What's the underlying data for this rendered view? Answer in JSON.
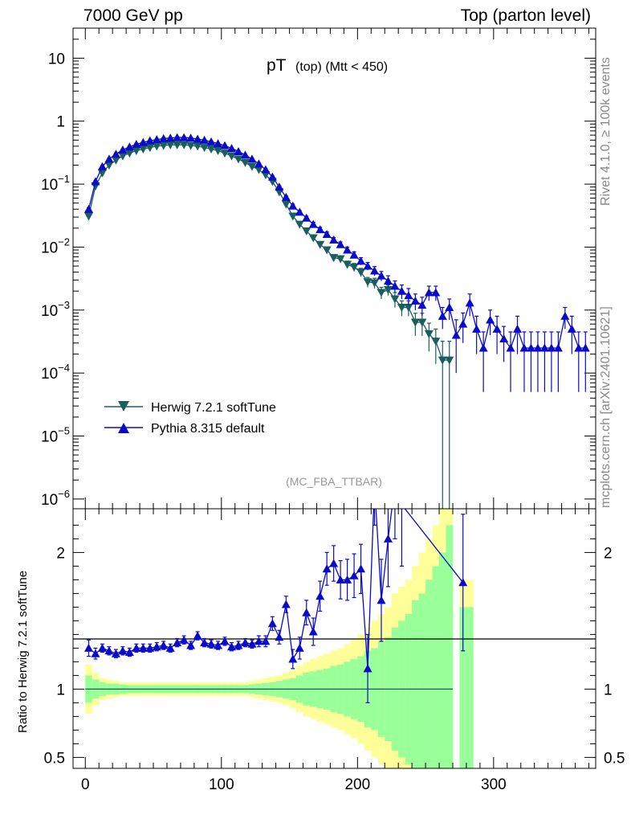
{
  "header": {
    "left": "7000 GeV pp",
    "right": "Top (parton level)"
  },
  "side_labels": {
    "rivet": "Rivet 4.1.0, ≥ 100k events",
    "mcplots": "mcplots.cern.ch [arXiv:2401.10621]"
  },
  "colors": {
    "herwig": "#1a5e5e",
    "pythia": "#0a0acc",
    "band_inner": "#99ff99",
    "band_outer": "#ffff99"
  },
  "chart_data": [
    {
      "type": "line",
      "title": "pT",
      "title_small": "(top) (Mtt < 450)",
      "watermark": "(MC_FBA_TTBAR)",
      "xlabel": "",
      "ylabel": "",
      "yscale": "log",
      "xlim": [
        -9,
        375
      ],
      "ylim": [
        7e-07,
        30
      ],
      "y_ticks": [
        1e-06,
        1e-05,
        0.0001,
        0.001,
        0.01,
        0.1,
        1,
        10
      ],
      "y_tick_labels": [
        {
          "base": "10",
          "exp": "−6"
        },
        {
          "base": "10",
          "exp": "−5"
        },
        {
          "base": "10",
          "exp": "−4"
        },
        {
          "base": "10",
          "exp": "−3"
        },
        {
          "base": "10",
          "exp": "−2"
        },
        {
          "base": "10",
          "exp": "−1"
        },
        {
          "base": "1",
          "exp": ""
        },
        {
          "base": "10",
          "exp": ""
        }
      ],
      "legend": [
        "Herwig 7.2.1 softTune",
        "Pythia 8.315 default"
      ],
      "legend_position": "bottom-left",
      "series": [
        {
          "name": "Herwig 7.2.1 softTune",
          "marker": "triangle-down",
          "x": [
            2.5,
            7.5,
            12.5,
            17.5,
            22.5,
            27.5,
            32.5,
            37.5,
            42.5,
            47.5,
            52.5,
            57.5,
            62.5,
            67.5,
            72.5,
            77.5,
            82.5,
            87.5,
            92.5,
            97.5,
            102.5,
            107.5,
            112.5,
            117.5,
            122.5,
            127.5,
            132.5,
            137.5,
            142.5,
            147.5,
            152.5,
            157.5,
            162.5,
            167.5,
            172.5,
            177.5,
            182.5,
            187.5,
            192.5,
            197.5,
            202.5,
            207.5,
            212.5,
            217.5,
            222.5,
            227.5,
            232.5,
            237.5,
            242.5,
            247.5,
            252.5,
            257.5,
            262.5,
            267.5
          ],
          "values": [
            0.031,
            0.093,
            0.15,
            0.2,
            0.24,
            0.28,
            0.31,
            0.34,
            0.36,
            0.38,
            0.4,
            0.41,
            0.42,
            0.42,
            0.42,
            0.41,
            0.4,
            0.38,
            0.36,
            0.34,
            0.31,
            0.28,
            0.25,
            0.22,
            0.19,
            0.17,
            0.14,
            0.11,
            0.075,
            0.048,
            0.031,
            0.023,
            0.018,
            0.014,
            0.011,
            0.009,
            0.0068,
            0.0065,
            0.0053,
            0.0048,
            0.004,
            0.0028,
            0.0027,
            0.0019,
            0.0021,
            0.0015,
            0.0011,
            0.0011,
            0.00064,
            0.00064,
            0.00042,
            0.00032,
            0.00016,
            0.00016
          ],
          "err_low": [
            0.002,
            0.004,
            0.005,
            0.006,
            0.007,
            0.007,
            0.008,
            0.008,
            0.008,
            0.008,
            0.008,
            0.008,
            0.008,
            0.008,
            0.008,
            0.008,
            0.008,
            0.008,
            0.008,
            0.008,
            0.007,
            0.007,
            0.007,
            0.006,
            0.006,
            0.005,
            0.005,
            0.004,
            0.003,
            0.003,
            0.002,
            0.002,
            0.0015,
            0.0012,
            0.001,
            0.0009,
            0.0008,
            0.0008,
            0.0007,
            0.0007,
            0.0006,
            0.0005,
            0.0005,
            0.0004,
            0.0004,
            0.0004,
            0.0003,
            0.0003,
            0.00025,
            0.00025,
            0.0002,
            0.00018,
            0.00016,
            0.00016
          ],
          "err_high": [
            0.002,
            0.004,
            0.005,
            0.006,
            0.007,
            0.007,
            0.008,
            0.008,
            0.008,
            0.008,
            0.008,
            0.008,
            0.008,
            0.008,
            0.008,
            0.008,
            0.008,
            0.008,
            0.008,
            0.008,
            0.007,
            0.007,
            0.007,
            0.006,
            0.006,
            0.005,
            0.005,
            0.004,
            0.003,
            0.003,
            0.002,
            0.002,
            0.0015,
            0.0012,
            0.001,
            0.0009,
            0.0008,
            0.0008,
            0.0007,
            0.0007,
            0.0006,
            0.0005,
            0.0005,
            0.0004,
            0.0004,
            0.0004,
            0.0003,
            0.0003,
            0.00025,
            0.00025,
            0.0002,
            0.00018,
            0.00016,
            0.00016
          ]
        },
        {
          "name": "Pythia 8.315 default",
          "marker": "triangle-up",
          "x": [
            2.5,
            7.5,
            12.5,
            17.5,
            22.5,
            27.5,
            32.5,
            37.5,
            42.5,
            47.5,
            52.5,
            57.5,
            62.5,
            67.5,
            72.5,
            77.5,
            82.5,
            87.5,
            92.5,
            97.5,
            102.5,
            107.5,
            112.5,
            117.5,
            122.5,
            127.5,
            132.5,
            137.5,
            142.5,
            147.5,
            152.5,
            157.5,
            162.5,
            167.5,
            172.5,
            177.5,
            182.5,
            187.5,
            192.5,
            197.5,
            202.5,
            207.5,
            212.5,
            217.5,
            222.5,
            227.5,
            232.5,
            237.5,
            242.5,
            247.5,
            252.5,
            257.5,
            262.5,
            267.5,
            272.5,
            277.5,
            282.5,
            287.5,
            292.5,
            297.5,
            302.5,
            307.5,
            312.5,
            317.5,
            322.5,
            327.5,
            332.5,
            337.5,
            342.5,
            347.5,
            352.5,
            357.5,
            362.5,
            367.5
          ],
          "values": [
            0.04,
            0.11,
            0.19,
            0.25,
            0.3,
            0.35,
            0.39,
            0.43,
            0.46,
            0.49,
            0.51,
            0.53,
            0.54,
            0.55,
            0.55,
            0.54,
            0.52,
            0.5,
            0.47,
            0.44,
            0.41,
            0.37,
            0.33,
            0.29,
            0.25,
            0.21,
            0.17,
            0.13,
            0.09,
            0.062,
            0.045,
            0.036,
            0.029,
            0.023,
            0.019,
            0.016,
            0.013,
            0.011,
            0.009,
            0.0075,
            0.006,
            0.005,
            0.0042,
            0.0035,
            0.0029,
            0.0024,
            0.002,
            0.0017,
            0.0014,
            0.0012,
            0.0019,
            0.0019,
            0.0008,
            0.0011,
            0.0004,
            0.0006,
            0.0013,
            0.0005,
            0.00025,
            0.0007,
            0.0005,
            0.00035,
            0.00025,
            0.0005,
            0.00025,
            0.00025,
            0.00025,
            0.00025,
            0.00025,
            0.00025,
            0.0008,
            0.0005,
            0.00025,
            0.00025
          ],
          "err_low": [
            0.002,
            0.004,
            0.006,
            0.007,
            0.008,
            0.008,
            0.009,
            0.009,
            0.009,
            0.009,
            0.009,
            0.009,
            0.009,
            0.009,
            0.009,
            0.009,
            0.009,
            0.009,
            0.009,
            0.009,
            0.008,
            0.008,
            0.008,
            0.007,
            0.007,
            0.006,
            0.006,
            0.005,
            0.004,
            0.003,
            0.003,
            0.002,
            0.002,
            0.0018,
            0.0016,
            0.0014,
            0.0012,
            0.0011,
            0.001,
            0.0009,
            0.0008,
            0.0007,
            0.0007,
            0.0006,
            0.0006,
            0.0005,
            0.0005,
            0.0005,
            0.0004,
            0.0004,
            0.0005,
            0.0005,
            0.0003,
            0.0004,
            0.0003,
            0.0003,
            0.0005,
            0.0003,
            0.0002,
            0.0003,
            0.0003,
            0.0002,
            0.0002,
            0.0003,
            0.0002,
            0.0002,
            0.0002,
            0.0002,
            0.0002,
            0.0002,
            0.0003,
            0.0003,
            0.0002,
            0.0002
          ],
          "err_high": [
            0.002,
            0.004,
            0.006,
            0.007,
            0.008,
            0.008,
            0.009,
            0.009,
            0.009,
            0.009,
            0.009,
            0.009,
            0.009,
            0.009,
            0.009,
            0.009,
            0.009,
            0.009,
            0.009,
            0.009,
            0.008,
            0.008,
            0.008,
            0.007,
            0.007,
            0.006,
            0.006,
            0.005,
            0.004,
            0.003,
            0.003,
            0.002,
            0.002,
            0.0018,
            0.0016,
            0.0014,
            0.0012,
            0.0011,
            0.001,
            0.0009,
            0.0008,
            0.0007,
            0.0007,
            0.0006,
            0.0006,
            0.0005,
            0.0005,
            0.0005,
            0.0004,
            0.0004,
            0.0005,
            0.0005,
            0.0003,
            0.0004,
            0.0003,
            0.0003,
            0.0005,
            0.0003,
            0.0002,
            0.0003,
            0.0003,
            0.0002,
            0.0002,
            0.0003,
            0.0002,
            0.0002,
            0.0002,
            0.0002,
            0.0002,
            0.0002,
            0.0003,
            0.0003,
            0.0002,
            0.0002
          ]
        }
      ]
    },
    {
      "type": "line",
      "title": "",
      "xlabel": "",
      "ylabel": "Ratio to Herwig 7.2.1 softTune",
      "xlim": [
        -9,
        375
      ],
      "ylim": [
        0.42,
        2.32
      ],
      "x_ticks": [
        0,
        100,
        200,
        300
      ],
      "x_tick_labels": [
        "0",
        "100",
        "200",
        "300"
      ],
      "y_ticks": [
        0.5,
        1,
        2
      ],
      "y_tick_labels": [
        "0.5",
        "1",
        "2"
      ],
      "reference_line": 1,
      "band": {
        "x_edges": [
          0,
          5,
          10,
          15,
          20,
          25,
          30,
          35,
          40,
          45,
          50,
          55,
          60,
          65,
          70,
          75,
          80,
          85,
          90,
          95,
          100,
          105,
          110,
          115,
          120,
          125,
          130,
          135,
          140,
          145,
          150,
          155,
          160,
          165,
          170,
          175,
          180,
          185,
          190,
          195,
          200,
          205,
          210,
          215,
          220,
          225,
          230,
          235,
          240,
          245,
          250,
          255,
          260,
          265,
          270,
          275,
          280,
          285
        ],
        "inner_err": [
          0.1,
          0.07,
          0.05,
          0.04,
          0.04,
          0.035,
          0.03,
          0.03,
          0.03,
          0.03,
          0.03,
          0.03,
          0.03,
          0.03,
          0.03,
          0.03,
          0.03,
          0.03,
          0.03,
          0.03,
          0.03,
          0.03,
          0.03,
          0.03,
          0.035,
          0.04,
          0.045,
          0.05,
          0.06,
          0.07,
          0.08,
          0.1,
          0.12,
          0.13,
          0.14,
          0.15,
          0.17,
          0.18,
          0.2,
          0.22,
          0.24,
          0.28,
          0.3,
          0.35,
          0.38,
          0.45,
          0.5,
          0.55,
          0.65,
          0.7,
          0.8,
          0.9,
          1.0,
          1.2,
          0.0,
          0.6,
          0.6
        ],
        "outer_err": [
          0.18,
          0.12,
          0.08,
          0.07,
          0.06,
          0.05,
          0.05,
          0.05,
          0.05,
          0.05,
          0.05,
          0.05,
          0.05,
          0.05,
          0.05,
          0.05,
          0.05,
          0.05,
          0.05,
          0.05,
          0.05,
          0.05,
          0.05,
          0.05,
          0.06,
          0.07,
          0.08,
          0.09,
          0.1,
          0.12,
          0.14,
          0.17,
          0.2,
          0.22,
          0.24,
          0.26,
          0.28,
          0.3,
          0.33,
          0.36,
          0.4,
          0.45,
          0.5,
          0.55,
          0.6,
          0.7,
          0.75,
          0.8,
          0.9,
          1.0,
          1.1,
          1.2,
          1.4,
          1.6,
          0.0,
          0.8,
          0.8
        ]
      },
      "series": [
        {
          "name": "Pythia 8.315 default",
          "marker": "triangle-up",
          "x": [
            2.5,
            7.5,
            12.5,
            17.5,
            22.5,
            27.5,
            32.5,
            37.5,
            42.5,
            47.5,
            52.5,
            57.5,
            62.5,
            67.5,
            72.5,
            77.5,
            82.5,
            87.5,
            92.5,
            97.5,
            102.5,
            107.5,
            112.5,
            117.5,
            122.5,
            127.5,
            132.5,
            137.5,
            142.5,
            147.5,
            152.5,
            157.5,
            162.5,
            167.5,
            172.5,
            177.5,
            182.5,
            187.5,
            192.5,
            197.5,
            202.5,
            207.5,
            212.5,
            217.5,
            222.5,
            227.5,
            232.5,
            277.5
          ],
          "values": [
            1.3,
            1.26,
            1.3,
            1.28,
            1.26,
            1.28,
            1.27,
            1.3,
            1.3,
            1.3,
            1.31,
            1.32,
            1.3,
            1.34,
            1.36,
            1.32,
            1.39,
            1.34,
            1.33,
            1.32,
            1.35,
            1.31,
            1.32,
            1.34,
            1.33,
            1.35,
            1.35,
            1.48,
            1.38,
            1.62,
            1.22,
            1.3,
            1.56,
            1.42,
            1.68,
            1.88,
            1.92,
            1.8,
            1.8,
            1.83,
            1.88,
            1.15,
            2.5,
            1.65,
            2.1,
            2.5,
            2.35,
            1.78
          ],
          "err": [
            0.06,
            0.04,
            0.03,
            0.03,
            0.03,
            0.03,
            0.03,
            0.03,
            0.03,
            0.03,
            0.03,
            0.03,
            0.03,
            0.03,
            0.03,
            0.03,
            0.03,
            0.03,
            0.03,
            0.03,
            0.03,
            0.03,
            0.03,
            0.03,
            0.03,
            0.04,
            0.04,
            0.05,
            0.05,
            0.06,
            0.07,
            0.08,
            0.09,
            0.1,
            0.11,
            0.12,
            0.13,
            0.14,
            0.15,
            0.16,
            0.18,
            0.25,
            0.3,
            0.3,
            0.35,
            0.4,
            0.45,
            0.5
          ]
        }
      ]
    }
  ]
}
